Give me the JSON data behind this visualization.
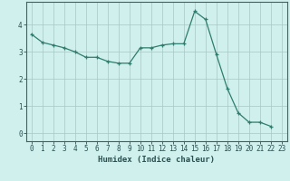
{
  "x": [
    0,
    1,
    2,
    3,
    4,
    5,
    6,
    7,
    8,
    9,
    10,
    11,
    12,
    13,
    14,
    15,
    16,
    17,
    18,
    19,
    20,
    21,
    22,
    23
  ],
  "y": [
    3.65,
    3.35,
    3.25,
    3.15,
    3.0,
    2.8,
    2.8,
    2.65,
    2.58,
    2.58,
    3.15,
    3.15,
    3.25,
    3.3,
    3.3,
    4.5,
    4.2,
    2.9,
    1.65,
    0.75,
    0.4,
    0.4,
    0.25,
    null
  ],
  "xlabel": "Humidex (Indice chaleur)",
  "line_color": "#2e7d6e",
  "marker": "+",
  "bg_color": "#cff0ec",
  "grid_color": "#c8b8b0",
  "axis_color": "#446060",
  "text_color": "#2a5050",
  "ylim": [
    -0.3,
    4.85
  ],
  "xlim": [
    -0.5,
    23.5
  ],
  "yticks": [
    0,
    1,
    2,
    3,
    4
  ],
  "xticks": [
    0,
    1,
    2,
    3,
    4,
    5,
    6,
    7,
    8,
    9,
    10,
    11,
    12,
    13,
    14,
    15,
    16,
    17,
    18,
    19,
    20,
    21,
    22,
    23
  ]
}
